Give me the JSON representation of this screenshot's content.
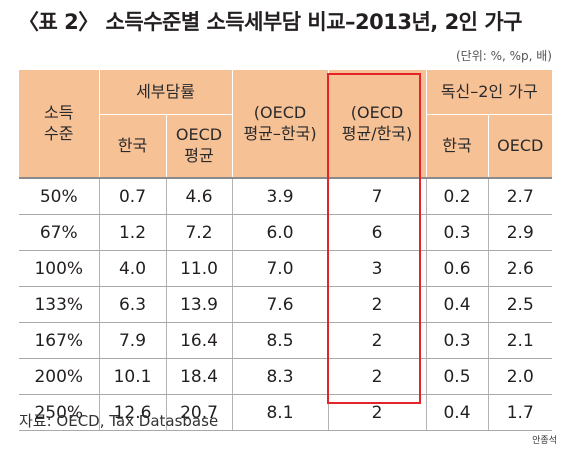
{
  "title": "〈표 2〉 소득수준별 소득세부담 비교–2013년, 2인 가구",
  "unit": "(단위: %, %p, 배)",
  "table": {
    "headers": {
      "income_level": [
        "소득",
        "수준"
      ],
      "tax_burden": "세부담률",
      "korea": "한국",
      "oecd_avg": [
        "OECD",
        "평균"
      ],
      "diff": [
        "(OECD",
        "평균–한국)"
      ],
      "ratio": [
        "(OECD",
        "평균/한국)"
      ],
      "single_vs_two": "독신–2인 가구",
      "korea2": "한국",
      "oecd2": "OECD"
    },
    "rows": [
      [
        "50%",
        "0.7",
        "4.6",
        "3.9",
        "7",
        "0.2",
        "2.7"
      ],
      [
        "67%",
        "1.2",
        "7.2",
        "6.0",
        "6",
        "0.3",
        "2.9"
      ],
      [
        "100%",
        "4.0",
        "11.0",
        "7.0",
        "3",
        "0.6",
        "2.6"
      ],
      [
        "133%",
        "6.3",
        "13.9",
        "7.6",
        "2",
        "0.4",
        "2.5"
      ],
      [
        "167%",
        "7.9",
        "16.4",
        "8.5",
        "2",
        "0.3",
        "2.1"
      ],
      [
        "200%",
        "10.1",
        "18.4",
        "8.3",
        "2",
        "0.5",
        "2.0"
      ],
      [
        "250%",
        "12.6",
        "20.7",
        "8.1",
        "2",
        "0.4",
        "1.7"
      ]
    ]
  },
  "source": "자료: OECD, Tax Datasbase",
  "credit": "안종석",
  "colors": {
    "header_bg": "#f7c196",
    "highlight_border": "#e5232a"
  }
}
